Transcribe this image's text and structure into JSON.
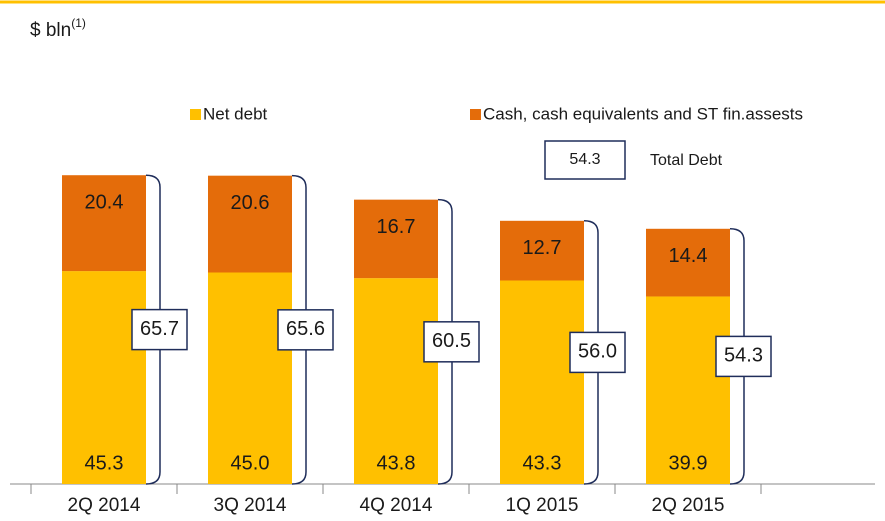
{
  "chart_data": {
    "type": "stacked_bar",
    "title": "$ bln",
    "title_note": "(1)",
    "categories": [
      "2Q 2014",
      "3Q 2014",
      "4Q 2014",
      "1Q 2015",
      "2Q 2015"
    ],
    "series": [
      {
        "name": "Net debt",
        "color": "#FFC000",
        "values": [
          45.3,
          45.0,
          43.8,
          43.3,
          39.9
        ],
        "value_labels": [
          "45.3",
          "45.0",
          "43.8",
          "43.3",
          "39.9"
        ]
      },
      {
        "name": "Cash, cash equivalents and ST fin.assests",
        "color": "#E46C0A",
        "values": [
          20.4,
          20.6,
          16.7,
          12.7,
          14.4
        ],
        "value_labels": [
          "20.4",
          "20.6",
          "16.7",
          "12.7",
          "14.4"
        ]
      }
    ],
    "totals": [
      65.7,
      65.6,
      60.5,
      56.0,
      54.3
    ],
    "totals_labels": [
      "65.7",
      "65.6",
      "60.5",
      "56.0",
      "54.3"
    ],
    "totals_legend": {
      "sample": "54.3",
      "label": "Total Debt"
    },
    "ylim": [
      0,
      70
    ]
  }
}
